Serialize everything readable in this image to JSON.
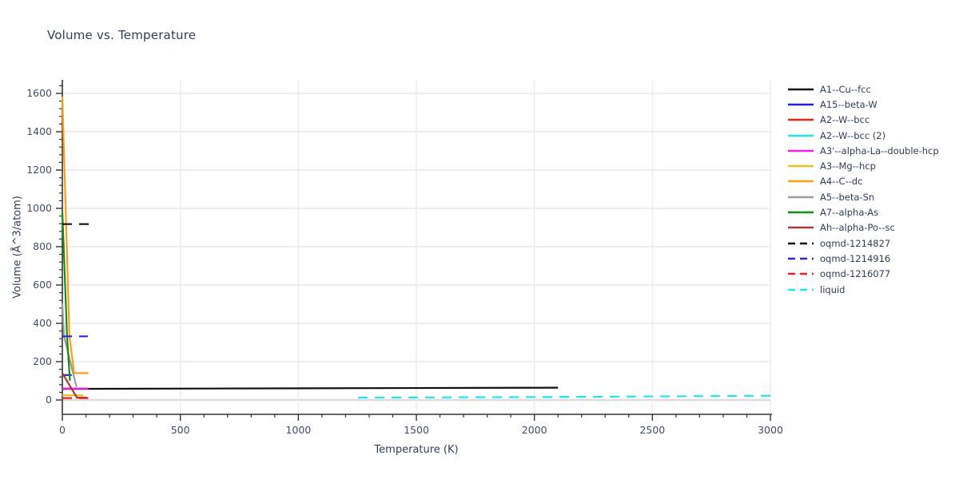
{
  "page": {
    "background": "#ffffff"
  },
  "chart_data": {
    "type": "line",
    "title": "Volume vs. Temperature",
    "xlabel": "Temperature (K)",
    "ylabel": "Volume (Å^3/atom)",
    "xlim": [
      0,
      3000
    ],
    "ylim": [
      0,
      1670
    ],
    "x_ticks": [
      0,
      500,
      1000,
      1500,
      2000,
      2500,
      3000
    ],
    "y_ticks": [
      0,
      200,
      400,
      600,
      800,
      1000,
      1200,
      1400,
      1600
    ],
    "x_minor_step": 100,
    "y_minor_step": 40,
    "grid": true,
    "legend_position": "right",
    "axis_color": "#333333",
    "grid_color": "#e9e9e9",
    "zero_grid_color": "#dcdcdc",
    "tick_label_color": "#3e4d6b",
    "series": [
      {
        "name": "A1--Cu--fcc",
        "color": "#111111",
        "dash": "solid",
        "points": [
          [
            0,
            58
          ],
          [
            2100,
            64
          ]
        ]
      },
      {
        "name": "A15--beta-W",
        "color": "#2121d6",
        "dash": "solid",
        "points": [
          [
            0,
            130
          ],
          [
            40,
            130
          ]
        ]
      },
      {
        "name": "A2--W--bcc",
        "color": "#f02311",
        "dash": "solid",
        "points": [
          [
            0,
            60
          ],
          [
            60,
            60
          ]
        ]
      },
      {
        "name": "A2--W--bcc (2)",
        "color": "#1fe7e7",
        "dash": "solid",
        "points": [
          [
            0,
            24
          ],
          [
            80,
            24
          ]
        ]
      },
      {
        "name": "A3'--alpha-La--double-hcp",
        "color": "#ee22ee",
        "dash": "solid",
        "points": [
          [
            0,
            60
          ],
          [
            110,
            60
          ]
        ]
      },
      {
        "name": "A3--Mg--hcp",
        "color": "#edc01e",
        "dash": "solid",
        "points": [
          [
            0,
            24
          ],
          [
            90,
            24
          ]
        ]
      },
      {
        "name": "A4--C--dc",
        "color": "#ff9e14",
        "dash": "solid",
        "points": [
          [
            0,
            1583
          ],
          [
            30,
            333
          ],
          [
            50,
            140
          ],
          [
            110,
            140
          ]
        ]
      },
      {
        "name": "A5--beta-Sn",
        "color": "#9c9c9c",
        "dash": "solid",
        "points": [
          [
            0,
            505
          ],
          [
            7,
            333
          ],
          [
            60,
            68
          ]
        ]
      },
      {
        "name": "A7--alpha-As",
        "color": "#128e1d",
        "dash": "solid",
        "points": [
          [
            0,
            985
          ],
          [
            20,
            333
          ],
          [
            32,
            100
          ]
        ]
      },
      {
        "name": "Ah--alpha-Po--sc",
        "color": "#b23535",
        "dash": "solid",
        "points": [
          [
            0,
            140
          ],
          [
            62,
            12
          ],
          [
            105,
            12
          ]
        ]
      },
      {
        "name": "oqmd-1214827",
        "color": "#111111",
        "dash": "dash",
        "points": [
          [
            0,
            918
          ],
          [
            115,
            918
          ]
        ]
      },
      {
        "name": "oqmd-1214916",
        "color": "#2727dd",
        "dash": "dash",
        "points": [
          [
            0,
            332
          ],
          [
            108,
            332
          ]
        ]
      },
      {
        "name": "oqmd-1216077",
        "color": "#ef2020",
        "dash": "dash",
        "points": [
          [
            0,
            10
          ],
          [
            110,
            10
          ]
        ]
      },
      {
        "name": "liquid",
        "color": "#1fe7e7",
        "dash": "dash",
        "points": [
          [
            1253,
            12
          ],
          [
            2000,
            15
          ],
          [
            3000,
            22
          ]
        ]
      }
    ]
  }
}
